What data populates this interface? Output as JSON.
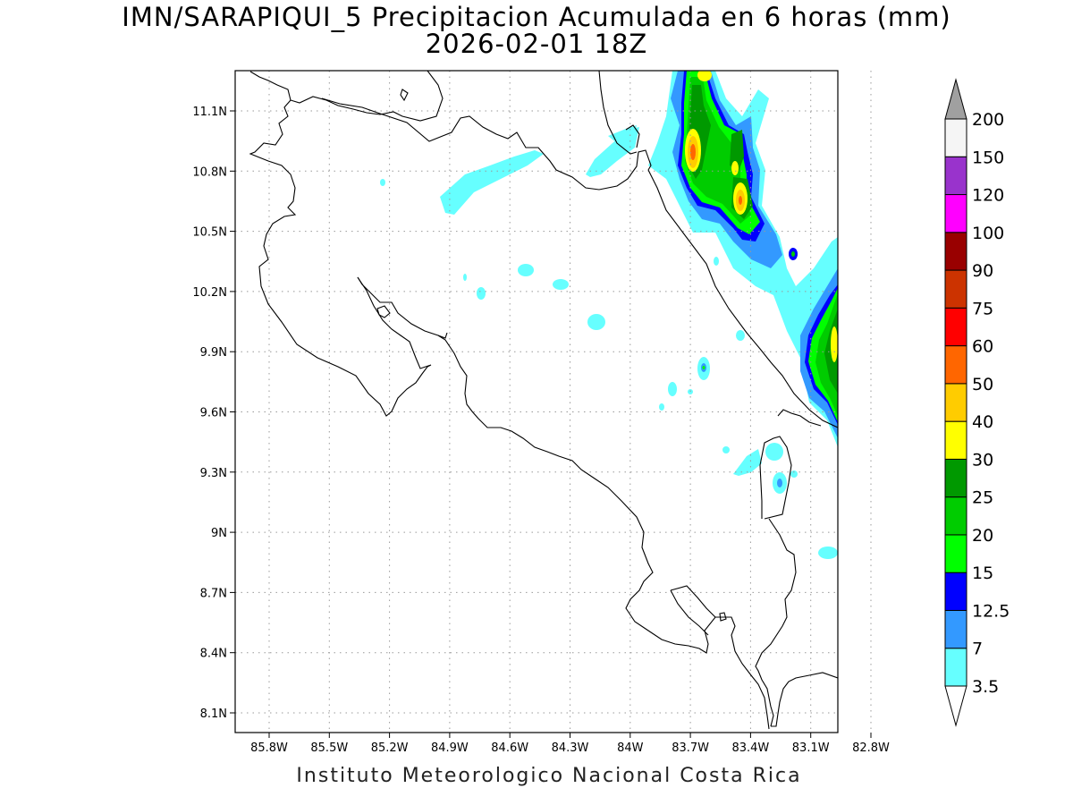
{
  "title_line1": "IMN/SARAPIQUI_5 Precipitacion Acumulada en 6 horas (mm)",
  "title_line2": "2026-02-01 18Z",
  "credit": "Instituto Meteorologico Nacional Costa Rica",
  "x_ticks": [
    "85.8W",
    "85.5W",
    "85.2W",
    "84.9W",
    "84.6W",
    "84.3W",
    "84W",
    "83.7W",
    "83.4W",
    "83.1W",
    "82.8W"
  ],
  "y_ticks": [
    "11.1N",
    "10.8N",
    "10.5N",
    "10.2N",
    "9.9N",
    "9.6N",
    "9.3N",
    "9N",
    "8.7N",
    "8.4N",
    "8.1N"
  ],
  "colorbar": {
    "levels": [
      "3.5",
      "7",
      "12.5",
      "15",
      "20",
      "25",
      "30",
      "40",
      "50",
      "60",
      "75",
      "90",
      "100",
      "120",
      "150",
      "200"
    ],
    "colors": [
      "#66ffff",
      "#3399ff",
      "#0000ff",
      "#00ff00",
      "#00cc00",
      "#009900",
      "#ffff00",
      "#ffcc00",
      "#ff6600",
      "#ff0000",
      "#cc3300",
      "#990000",
      "#ff00ff",
      "#9933cc",
      "#f5f5f5"
    ],
    "under_color": "#ffffff",
    "over_color": "#a0a0a0"
  }
}
